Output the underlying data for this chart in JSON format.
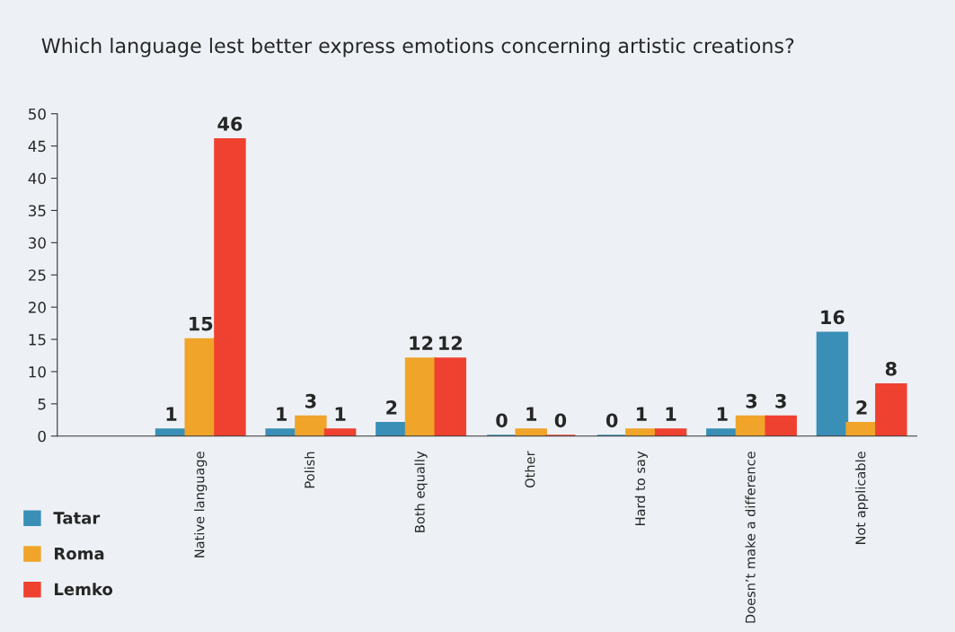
{
  "chart_data": {
    "type": "bar",
    "title": "Which language lest better express emotions concerning artistic creations?",
    "categories": [
      "Native language",
      "Polish",
      "Both equally",
      "Other",
      "Hard to say",
      "Doesn’t make a difference",
      "Not applicable"
    ],
    "series": [
      {
        "name": "Tatar",
        "color": "#3a8fb7",
        "values": [
          1,
          1,
          2,
          0,
          0,
          1,
          16
        ]
      },
      {
        "name": "Roma",
        "color": "#f0a42a",
        "values": [
          15,
          3,
          12,
          1,
          1,
          3,
          2
        ]
      },
      {
        "name": "Lemko",
        "color": "#ef4130",
        "values": [
          46,
          1,
          12,
          0,
          1,
          3,
          8
        ]
      }
    ],
    "ylim": [
      0,
      50
    ],
    "yticks": [
      0,
      5,
      10,
      15,
      20,
      25,
      30,
      35,
      40,
      45,
      50
    ],
    "grid": false,
    "legend": "bottom left",
    "data_labels": true
  }
}
